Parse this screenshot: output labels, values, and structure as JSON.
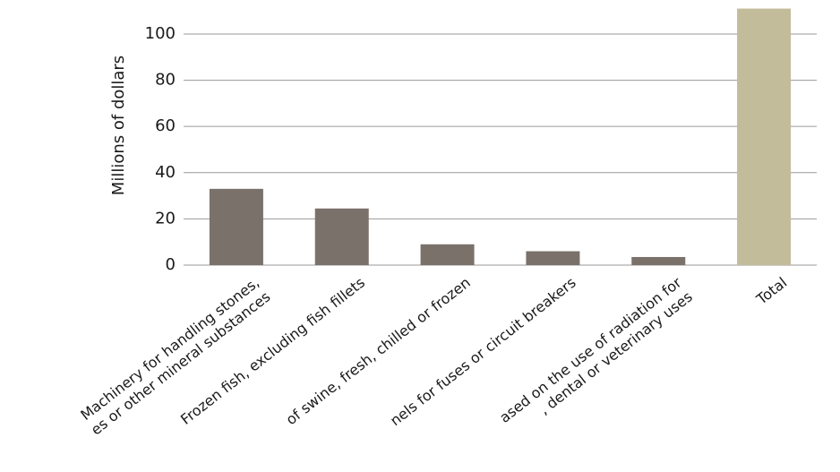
{
  "chart_data": {
    "type": "bar",
    "y_label": "Millions of dollars",
    "categories": [
      [
        "Machinery for handling stones,",
        "es or other mineral substances"
      ],
      [
        "Frozen fish, excluding fish fillets"
      ],
      [
        "of swine, fresh, chilled or frozen"
      ],
      [
        "nels for fuses or circuit breakers"
      ],
      [
        "ased on the use of radiation for",
        ", dental or veterinary uses"
      ],
      [
        "Total"
      ]
    ],
    "values": [
      33,
      24.5,
      9,
      6,
      3.5,
      111
    ],
    "colors": [
      "#7a716b",
      "#7a716b",
      "#7a716b",
      "#7a716b",
      "#7a716b",
      "#c2bc9b"
    ],
    "ylim": [
      0,
      112
    ],
    "yticks": [
      0,
      20,
      40,
      60,
      80,
      100
    ],
    "grid": true
  }
}
